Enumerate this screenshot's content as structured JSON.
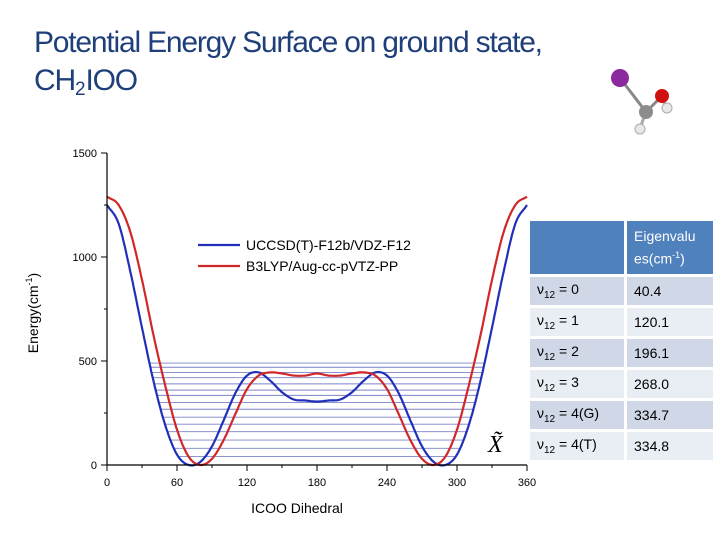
{
  "slide": {
    "title_line1": "Potential Energy Surface on ground state,",
    "title_ch": "CH",
    "title_sub": "2",
    "title_rest": "IOO",
    "state_label": "X̃"
  },
  "table": {
    "header": "Eigenvalues(cm⁻¹)",
    "header_part1": "Eigenvalu",
    "header_part2": "es(cm",
    "header_sup": "-1",
    "header_close": ")",
    "rows": [
      {
        "nu": "ν",
        "sub": "12",
        "level": " = 0",
        "value": "40.4"
      },
      {
        "nu": "ν",
        "sub": "12",
        "level": " = 1",
        "value": "120.1"
      },
      {
        "nu": "ν",
        "sub": "12",
        "level": " = 2",
        "value": "196.1"
      },
      {
        "nu": "ν",
        "sub": "12",
        "level": " = 3",
        "value": "268.0"
      },
      {
        "nu": "ν",
        "sub": "12",
        "level": " = 4(G)",
        "value": "334.7"
      },
      {
        "nu": "ν",
        "sub": "12",
        "level": " = 4(T)",
        "value": "334.8"
      }
    ]
  },
  "chart_data": {
    "type": "line",
    "title": "",
    "xlabel": "ICOO Dihedral",
    "ylabel": "Energy(cm-1)",
    "ylabel_main": "Energy(cm",
    "ylabel_sup": "-1",
    "ylabel_close": ")",
    "xlim": [
      0,
      360
    ],
    "ylim": [
      0,
      1500
    ],
    "xticks": [
      0,
      60,
      120,
      180,
      240,
      300,
      360
    ],
    "yticks": [
      0,
      500,
      1000,
      1500
    ],
    "x": [
      0,
      10,
      20,
      30,
      40,
      50,
      60,
      70,
      80,
      90,
      100,
      110,
      120,
      130,
      140,
      150,
      160,
      170,
      180,
      190,
      200,
      210,
      220,
      230,
      240,
      250,
      260,
      270,
      280,
      290,
      300,
      310,
      320,
      330,
      340,
      350,
      360
    ],
    "series": [
      {
        "name": "UCCSD(T)-F12b/VDZ-F12",
        "color": "#2030b8",
        "values": [
          1250,
          1160,
          930,
          660,
          400,
          190,
          50,
          0,
          15,
          90,
          215,
          345,
          430,
          445,
          405,
          350,
          315,
          310,
          305,
          310,
          315,
          350,
          405,
          445,
          430,
          345,
          215,
          90,
          15,
          0,
          50,
          190,
          400,
          660,
          930,
          1160,
          1250
        ]
      },
      {
        "name": "B3LYP/Aug-cc-pVTZ-PP",
        "color": "#d02828",
        "values": [
          1290,
          1250,
          1120,
          890,
          620,
          380,
          170,
          40,
          0,
          30,
          120,
          245,
          365,
          430,
          445,
          440,
          430,
          430,
          440,
          430,
          430,
          440,
          445,
          430,
          365,
          245,
          120,
          30,
          0,
          40,
          170,
          380,
          620,
          890,
          1120,
          1250,
          1290
        ]
      }
    ],
    "energy_levels": [
      40.4,
      80,
      120.1,
      160,
      196.1,
      230,
      268.0,
      300,
      334.7,
      360,
      390,
      420,
      445,
      470,
      490
    ],
    "legend_position": "top-center"
  }
}
